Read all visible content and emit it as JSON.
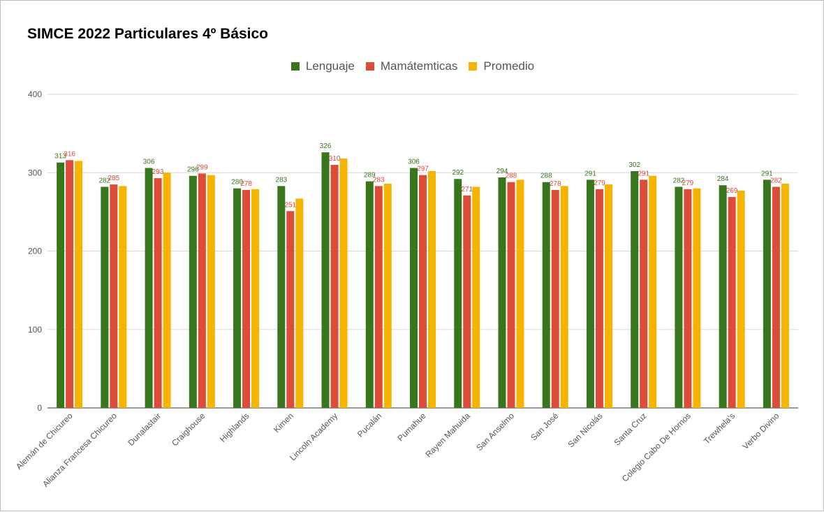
{
  "chart_data": {
    "type": "bar",
    "title": "SIMCE 2022 Particulares 4º Básico",
    "legend_position": "top",
    "grid": true,
    "ylim": [
      0,
      400
    ],
    "yticks": [
      0,
      100,
      200,
      300,
      400
    ],
    "categories": [
      "Alemán de Chicureo",
      "Alianza Francesa Chicureo",
      "Dunalastair",
      "Craighouse",
      "Highlands",
      "Kimen",
      "Lincoln Academy",
      "Pucalán",
      "Pumahue",
      "Rayen Mahuida",
      "San Anselmo",
      "San José",
      "San Nicolás",
      "Santa Cruz",
      "Colegio Cabo De Hornos",
      "Trewhela's",
      "Verbo Divino"
    ],
    "series": [
      {
        "name": "Lenguaje",
        "color": "#38761d",
        "label_color": "#38761d",
        "show_labels": true,
        "values": [
          313,
          282,
          306,
          296,
          280,
          283,
          326,
          289,
          306,
          292,
          294,
          288,
          291,
          302,
          282,
          284,
          291
        ]
      },
      {
        "name": "Mamátemticas",
        "color": "#dd4b39",
        "label_color": "#dd4b39",
        "show_labels": true,
        "values": [
          316,
          285,
          293,
          299,
          278,
          251,
          310,
          283,
          297,
          271,
          288,
          278,
          279,
          291,
          279,
          269,
          282
        ]
      },
      {
        "name": "Promedio",
        "color": "#f4b400",
        "label_color": "#f4b400",
        "show_labels": false,
        "values": [
          315,
          283,
          300,
          297,
          279,
          267,
          318,
          286,
          302,
          282,
          291,
          283,
          285,
          296,
          280,
          277,
          286
        ]
      }
    ]
  }
}
